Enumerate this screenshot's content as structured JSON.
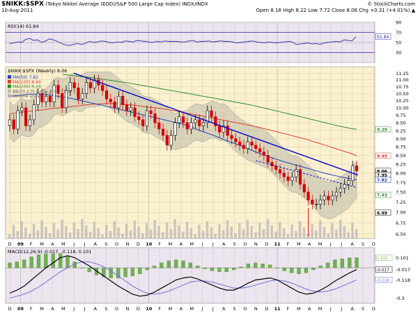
{
  "header": {
    "symbol": "$NIKK:$SPX",
    "description": "(Tokyo Nikkei Average (EOD)/S&P 500 Large Cap Index) INDX/INDX",
    "brand": "© StockCharts.com",
    "date": "10-Aug-2011",
    "quote": "Open 8.18  High 8.22  Low 7.72  Close 8.06  Chg +0.31 (+4.01%) ▲"
  },
  "colors": {
    "price_panel_bg": "#fbf1cf",
    "ind_panel_bg": "#ece4ee",
    "grid": "#d4ccb4",
    "candle_up": "#000000",
    "candle_down": "#d40000",
    "ma50": "#1f3fbf",
    "ma100": "#e03b2a",
    "ma200": "#2f8a2f",
    "bb_fill": "#bdb9a9",
    "volume": "#b6b3bc",
    "trendline": "#0000cc",
    "macd_line": "#000000",
    "macd_signal": "#7070d8",
    "macd_hist": "#70b050",
    "rsi_line": "#2a2aa8"
  },
  "chart_data": [
    {
      "type": "line",
      "panel": "rsi",
      "title": "RSI(14) 61.84",
      "ylim": [
        10,
        90
      ],
      "yticks": [
        10,
        30,
        50,
        70,
        90
      ],
      "ytick_labels": [
        "",
        "30",
        "50",
        "70",
        "90"
      ],
      "reference_lines": [
        30,
        70
      ],
      "last_value_label": "61.84",
      "values": [
        48,
        49,
        51,
        50,
        56,
        58,
        54,
        55,
        50,
        53,
        57,
        55,
        52,
        48,
        45,
        44,
        46,
        48,
        46,
        48,
        52,
        50,
        51,
        53,
        52,
        50,
        49,
        51,
        50,
        53,
        52,
        51,
        54,
        53,
        52,
        51,
        50,
        52,
        51,
        53,
        52,
        52,
        52,
        51,
        51,
        53,
        54,
        51,
        52,
        52,
        53,
        51,
        52,
        53,
        52,
        52,
        51,
        49,
        50,
        51,
        52,
        53,
        51,
        50,
        49,
        51,
        50,
        49,
        50,
        51,
        52,
        51,
        46,
        47,
        48,
        49,
        47,
        48,
        46,
        49,
        50,
        51,
        52,
        51,
        55,
        54,
        53,
        61.84
      ]
    },
    {
      "type": "candlestick",
      "panel": "price",
      "title": "$NIKK:$SPX (Weekly) 8.06",
      "yscale": "log",
      "ylim": [
        6.4,
        11.5
      ],
      "yticks": [
        6.5,
        6.75,
        7.0,
        7.25,
        7.5,
        7.75,
        8.0,
        8.25,
        8.5,
        8.75,
        9.0,
        9.25,
        9.5,
        9.75,
        10.0,
        10.25,
        10.5,
        10.75,
        11.0,
        11.25
      ],
      "ytick_labels": [
        "6.50",
        "6.75",
        "7.00",
        "7.25",
        "7.50",
        "7.75",
        "8.00",
        "8.25",
        "8.50",
        "8.75",
        "9.00",
        "9.25",
        "9.50",
        "9.75",
        "10.00",
        "10.25",
        "10.50",
        "10.75",
        "11.00",
        "11.25"
      ],
      "legend": [
        {
          "label": "MA(50) 7.82",
          "color": "#1f3fbf"
        },
        {
          "label": "MA(100) 8.49",
          "color": "#e03b2a"
        },
        {
          "label": "MA(200) 9.29",
          "color": "#2f8a2f"
        },
        {
          "label": "BB(20,2.0) 8.45 - 7.42 - 7.07",
          "color": "#bdb9a9"
        },
        {
          "label": "Volume undef",
          "color": "#b6b3bc"
        }
      ],
      "right_labels": [
        {
          "value": 9.29,
          "text": "9.29",
          "color": "#2f8a2f"
        },
        {
          "value": 8.49,
          "text": "8.49",
          "color": "#e03b2a"
        },
        {
          "value": 8.06,
          "text": "8.06",
          "color": "#000000"
        },
        {
          "value": 7.95,
          "text": "7.95",
          "color": "#000000"
        },
        {
          "value": 7.82,
          "text": "7.82",
          "color": "#1f3fbf"
        },
        {
          "value": 7.43,
          "text": "7.43",
          "color": "#2f8a2f"
        },
        {
          "value": 6.99,
          "text": "6.99",
          "color": "#000000"
        }
      ],
      "close": [
        9.6,
        9.3,
        9.9,
        10.0,
        9.4,
        9.6,
        10.1,
        10.5,
        10.2,
        10.4,
        10.2,
        10.8,
        10.5,
        10.0,
        10.6,
        10.9,
        10.7,
        10.3,
        10.5,
        10.9,
        10.7,
        11.0,
        10.8,
        10.6,
        10.3,
        10.2,
        10.0,
        10.4,
        10.1,
        9.9,
        10.0,
        9.7,
        9.6,
        9.4,
        9.9,
        9.8,
        9.5,
        9.3,
        9.1,
        8.8,
        9.1,
        9.5,
        9.7,
        9.5,
        9.3,
        9.5,
        9.6,
        9.4,
        9.5,
        9.9,
        9.7,
        9.4,
        9.2,
        9.4,
        9.1,
        9.0,
        8.9,
        8.8,
        8.7,
        8.9,
        8.8,
        8.7,
        8.6,
        8.5,
        8.3,
        8.2,
        8.1,
        8.0,
        7.9,
        7.8,
        7.9,
        8.1,
        7.7,
        7.5,
        7.3,
        7.2,
        7.2,
        7.3,
        7.4,
        7.3,
        7.4,
        7.5,
        7.6,
        7.7,
        7.8,
        8.2,
        8.06
      ],
      "ma50": [
        10.4,
        10.42,
        10.45,
        10.47,
        10.48,
        10.47,
        10.45,
        10.42,
        10.38,
        10.35,
        10.3,
        10.25,
        10.2,
        10.15,
        10.1,
        10.05,
        10.0,
        9.95,
        9.9,
        9.85,
        9.8,
        9.75,
        9.7,
        9.65,
        9.6,
        9.55,
        9.5,
        9.45,
        9.38,
        9.3,
        9.22,
        9.15,
        9.08,
        9.0,
        8.92,
        8.85,
        8.78,
        8.7,
        8.62,
        8.55,
        8.48,
        8.42,
        8.36,
        8.3,
        8.25,
        8.2,
        8.15,
        8.1,
        8.05,
        8.0,
        7.96,
        7.92,
        7.88,
        7.85,
        7.82
      ],
      "ma100": [
        9.8,
        9.82,
        9.85,
        9.88,
        9.9,
        9.92,
        9.95,
        9.98,
        10.0,
        10.02,
        10.05,
        10.07,
        10.1,
        10.12,
        10.13,
        10.14,
        10.15,
        10.14,
        10.12,
        10.1,
        10.08,
        10.05,
        10.02,
        10.0,
        9.97,
        9.94,
        9.9,
        9.86,
        9.82,
        9.78,
        9.74,
        9.7,
        9.66,
        9.62,
        9.58,
        9.54,
        9.5,
        9.46,
        9.42,
        9.38,
        9.33,
        9.28,
        9.23,
        9.18,
        9.13,
        9.08,
        9.03,
        8.98,
        8.92,
        8.86,
        8.8,
        8.74,
        8.68,
        8.62,
        8.56,
        8.49
      ],
      "ma200": [
        11.2,
        11.18,
        11.15,
        11.12,
        11.1,
        11.07,
        11.04,
        11.0,
        10.97,
        10.93,
        10.9,
        10.86,
        10.82,
        10.78,
        10.74,
        10.7,
        10.66,
        10.62,
        10.58,
        10.54,
        10.5,
        10.46,
        10.42,
        10.38,
        10.34,
        10.3,
        10.26,
        10.22,
        10.18,
        10.14,
        10.1,
        10.05,
        10.0,
        9.95,
        9.9,
        9.85,
        9.8,
        9.75,
        9.7,
        9.65,
        9.6,
        9.55,
        9.5,
        9.45,
        9.4,
        9.36,
        9.32,
        9.29
      ],
      "trendline": [
        {
          "date": "2009-06",
          "value": 11.25
        },
        {
          "date": "2011-08",
          "value": 7.95
        }
      ],
      "trendline2_dashed": [
        {
          "date": "2010-11",
          "value": 8.35
        },
        {
          "date": "2011-08",
          "value": 7.62
        }
      ]
    },
    {
      "type": "line",
      "panel": "macd",
      "title": "MACD(12,26,9) -0.017, -0.118, 0.101",
      "ylim": [
        -0.35,
        0.2
      ],
      "yticks": [
        0.101,
        0.0,
        -0.017,
        -0.118,
        -0.3
      ],
      "ytick_labels": [
        "0.101",
        "",
        "-0.017",
        "-0.118",
        "-0.3"
      ],
      "series": [
        {
          "name": "MACD",
          "values": [
            -0.25,
            -0.22,
            -0.18,
            -0.12,
            -0.06,
            0.0,
            0.05,
            0.1,
            0.12,
            0.1,
            0.06,
            0.02,
            -0.03,
            -0.08,
            -0.13,
            -0.18,
            -0.22,
            -0.26,
            -0.28,
            -0.27,
            -0.24,
            -0.2,
            -0.16,
            -0.12,
            -0.1,
            -0.09,
            -0.11,
            -0.14,
            -0.17,
            -0.2,
            -0.22,
            -0.22,
            -0.19,
            -0.15,
            -0.12,
            -0.11,
            -0.1,
            -0.12,
            -0.16,
            -0.2,
            -0.24,
            -0.26,
            -0.25,
            -0.22,
            -0.18,
            -0.13,
            -0.09,
            -0.05,
            -0.017
          ]
        },
        {
          "name": "Signal",
          "values": [
            -0.3,
            -0.28,
            -0.26,
            -0.23,
            -0.19,
            -0.14,
            -0.09,
            -0.04,
            0.0,
            0.04,
            0.06,
            0.06,
            0.04,
            0.01,
            -0.03,
            -0.08,
            -0.13,
            -0.18,
            -0.22,
            -0.25,
            -0.26,
            -0.25,
            -0.23,
            -0.2,
            -0.17,
            -0.14,
            -0.13,
            -0.13,
            -0.14,
            -0.16,
            -0.18,
            -0.2,
            -0.2,
            -0.19,
            -0.17,
            -0.15,
            -0.13,
            -0.12,
            -0.13,
            -0.15,
            -0.18,
            -0.21,
            -0.23,
            -0.24,
            -0.23,
            -0.21,
            -0.18,
            -0.15,
            -0.118
          ]
        }
      ]
    }
  ],
  "xaxis": {
    "months": [
      "D",
      "09",
      "F",
      "M",
      "A",
      "M",
      "J",
      "J",
      "A",
      "S",
      "O",
      "N",
      "D",
      "10",
      "F",
      "M",
      "A",
      "M",
      "J",
      "J",
      "A",
      "S",
      "O",
      "N",
      "D",
      "11",
      "F",
      "M",
      "A",
      "M",
      "J",
      "J",
      "A",
      "S",
      "O"
    ],
    "year_marks": [
      "09",
      "10",
      "11"
    ]
  }
}
